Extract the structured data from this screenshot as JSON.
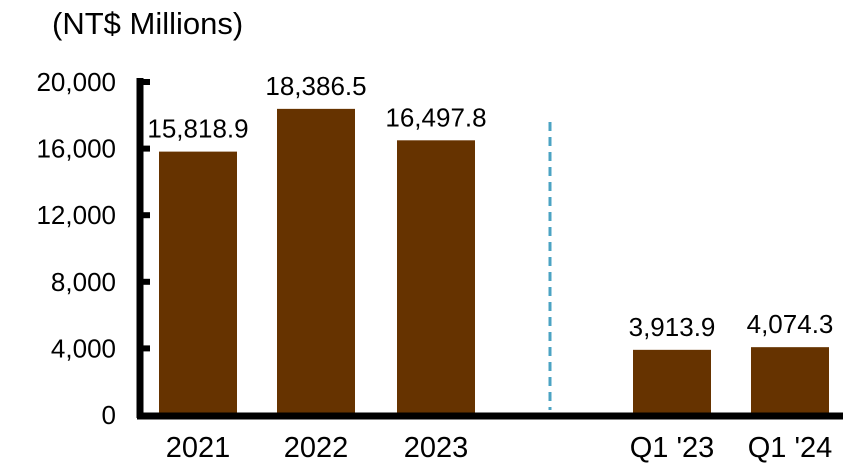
{
  "chart_data": {
    "type": "bar",
    "unit_label": "(NT$ Millions)",
    "categories": [
      "2021",
      "2022",
      "2023",
      "Q1 '23",
      "Q1 '24"
    ],
    "values": [
      15818.9,
      18386.5,
      16497.8,
      3913.9,
      4074.3
    ],
    "value_labels": [
      "15,818.9",
      "18,386.5",
      "16,497.8",
      "3,913.9",
      "4,074.3"
    ],
    "y_ticks": [
      "0",
      "4,000",
      "8,000",
      "12,000",
      "16,000",
      "20,000"
    ],
    "ylim": [
      0,
      20000
    ],
    "groups": [
      {
        "kind": "annual",
        "categories": [
          "2021",
          "2022",
          "2023"
        ]
      },
      {
        "kind": "quarterly",
        "categories": [
          "Q1 '23",
          "Q1 '24"
        ]
      }
    ],
    "separator": "dashed vertical line between annual and quarterly groups",
    "grid": false,
    "colors": {
      "bar": "#663300",
      "axis": "#000000",
      "separator": "#4BA3C3"
    }
  }
}
